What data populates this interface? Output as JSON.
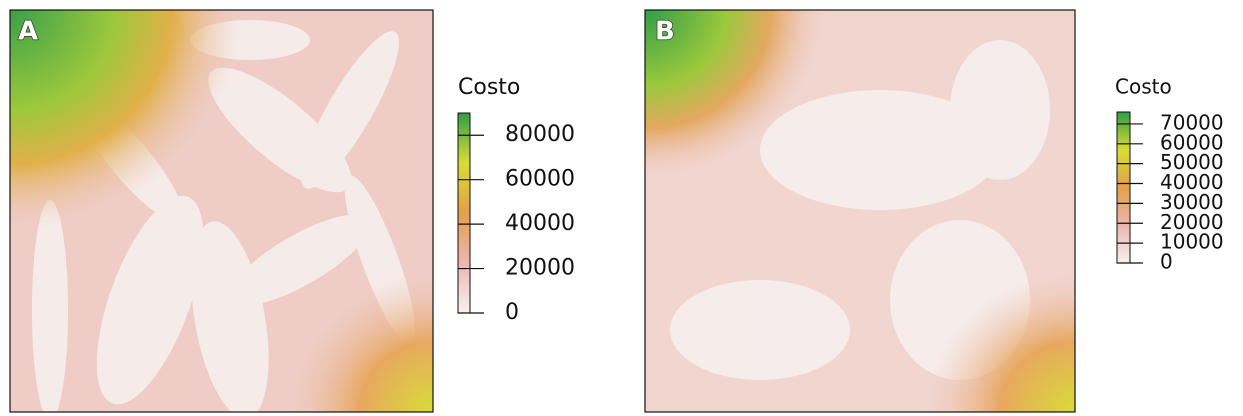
{
  "chart_data": [
    {
      "type": "raster",
      "panel": "A",
      "legend_title": "Costo",
      "colorbar_lim": [
        0,
        90000
      ],
      "colorbar_ticks": [
        0,
        20000,
        40000,
        60000,
        80000
      ],
      "colorscale": [
        "#f6f1f1",
        "#ecb6ae",
        "#e4a04a",
        "#d8dc36",
        "#2f9e48"
      ]
    },
    {
      "type": "raster",
      "panel": "B",
      "legend_title": "Costo",
      "colorbar_lim": [
        0,
        76000
      ],
      "colorbar_ticks": [
        0,
        10000,
        20000,
        30000,
        40000,
        50000,
        60000,
        70000
      ],
      "colorscale": [
        "#f6f1f1",
        "#ecb6ae",
        "#e4a04a",
        "#d8dc36",
        "#2f9e48"
      ]
    }
  ]
}
